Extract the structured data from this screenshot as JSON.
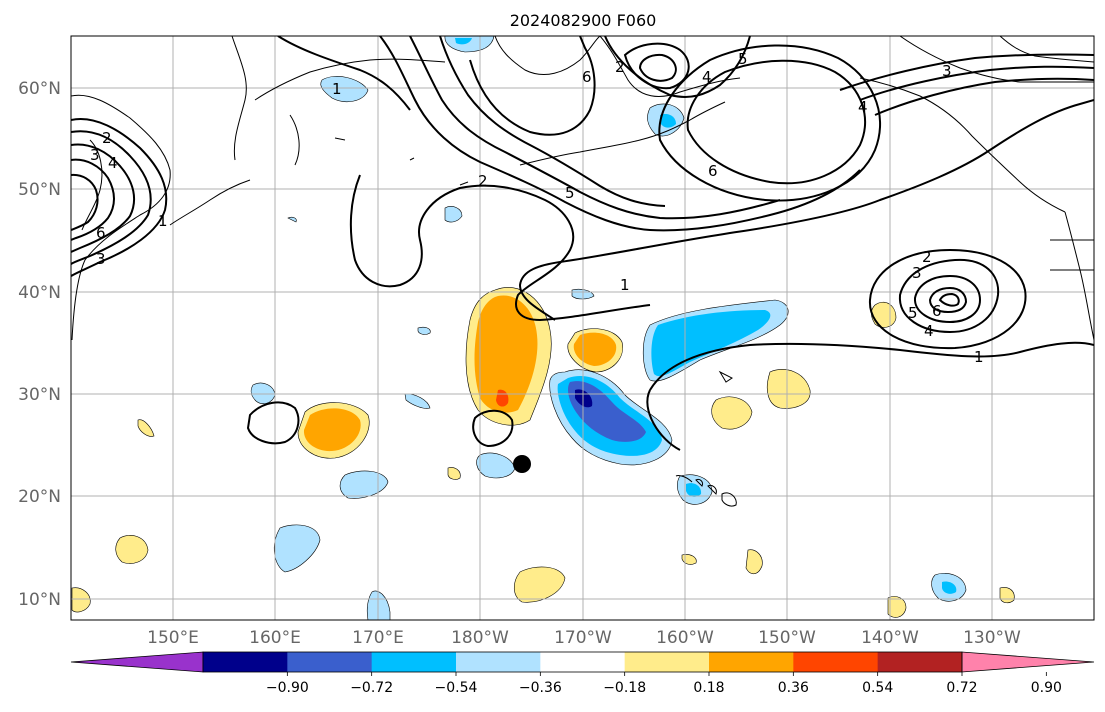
{
  "title": "2024082900 F060",
  "lat_labels": [
    "60°N",
    "50°N",
    "40°N",
    "30°N",
    "20°N",
    "10°N"
  ],
  "lon_labels": [
    "150°E",
    "160°E",
    "170°E",
    "180°W",
    "170°W",
    "160°W",
    "150°W",
    "140°W",
    "130°W"
  ],
  "colorbar": {
    "ticks": [
      "−0.90",
      "−0.72",
      "−0.54",
      "−0.36",
      "−0.18",
      "0.18",
      "0.36",
      "0.54",
      "0.72",
      "0.90"
    ],
    "colors": [
      "#9932CC",
      "#00008B",
      "#3A5FCD",
      "#00BFFF",
      "#B0E2FF",
      "#FFFFFF",
      "#FFEC8B",
      "#FFA500",
      "#FF4500",
      "#B22222",
      "#FF82AB"
    ]
  },
  "contour_labels": [
    "2",
    "3",
    "4",
    "6",
    "1",
    "3",
    "2",
    "6",
    "4",
    "5",
    "1",
    "2",
    "5",
    "6",
    "3",
    "4",
    "2",
    "3",
    "5",
    "6",
    "4",
    "1",
    "1"
  ],
  "shade_colors": {
    "light_yellow": "#FFEC8B",
    "orange": "#FFA500",
    "red_orange": "#FF4500",
    "light_blue": "#B0E2FF",
    "deep_sky_blue": "#00BFFF",
    "royal_blue": "#3A5FCD",
    "navy": "#00008B"
  },
  "marker": "storm-center-dot"
}
